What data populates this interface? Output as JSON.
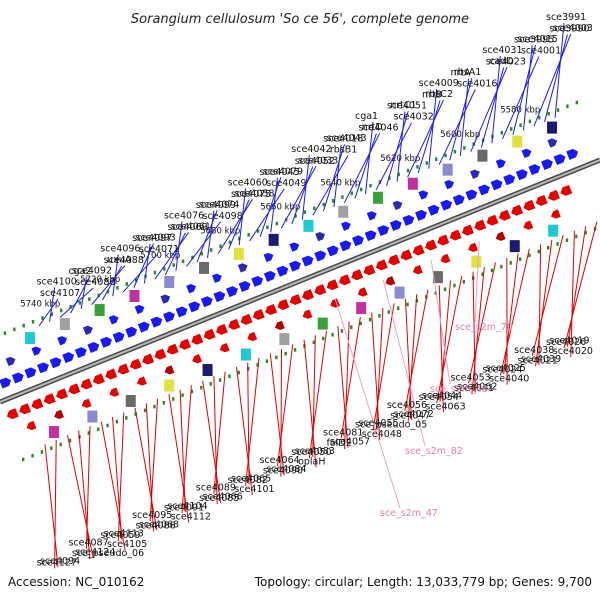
{
  "title": "Sorangium cellulosum 'So ce 56', complete genome",
  "footer": {
    "accession": "Accession: NC_010162",
    "summary": "Topology: circular; Length: 13,033,779 bp; Genes: 9,700"
  },
  "colors": {
    "forward": "#1a1aee",
    "reverse": "#e00000",
    "rna": "#f0a0c8",
    "dots": "#2a8a2a",
    "backbone": "#8a8a8a"
  },
  "kbp_markers": [
    "5580 kbp",
    "5600 kbp",
    "5620 kbp",
    "5640 kbp",
    "5660 kbp",
    "5680 kbp",
    "5700 kbp",
    "5720 kbp",
    "5740 kbp"
  ],
  "forward_genes": [
    "sce3991",
    "sce3990",
    "sce4003",
    "sce3995",
    "sce4015",
    "sce4001",
    "sce4031",
    "sce4023",
    "cadD",
    "nrtA",
    "rbsA1",
    "sce4016",
    "sce4009",
    "nrtB",
    "rbsC2",
    "sce4051",
    "nrtC1",
    "sce4032",
    "cga1",
    "sce4046",
    "nrtD",
    "sce4018",
    "sce4043",
    "rbsB1",
    "sce4042",
    "sce4052",
    "sce4033",
    "sce4045",
    "sce4079",
    "sce4049",
    "sce4060",
    "sce4075",
    "sce4058",
    "sce4099",
    "sce4074",
    "sce4098",
    "sce4076",
    "sce4069",
    "sce4061",
    "sce4097",
    "sce4093",
    "sce4071",
    "sce4096",
    "sce4088",
    "uxuA",
    "cga2",
    "sce4092",
    "sce4080",
    "sce4100",
    "sce4107"
  ],
  "reverse_genes": [
    "sce4026",
    "sce4019",
    "sce4020",
    "sce4038",
    "sce4021",
    "sce4039",
    "sce4024",
    "sce4025",
    "sce4040",
    "sce4053",
    "sce4041",
    "sce4062",
    "sce4054",
    "sce4044",
    "sce4063",
    "sce4056",
    "sce4047",
    "sce4072",
    "sce_pseudo_05",
    "sce4055",
    "sce4048",
    "sce4081",
    "folD2",
    "sce4057",
    "sce4050",
    "sce4083",
    "oplaH",
    "sce4064",
    "sce4090",
    "sce4084",
    "sce4082",
    "sce4065",
    "sce4101",
    "sce4089",
    "sce4085",
    "sce4066",
    "sce4091",
    "sce4104",
    "sce4112",
    "sce4095",
    "sce4086",
    "sce4068",
    "sce4059",
    "sce4113",
    "sce4105",
    "sce4087",
    "sce_pseudo_06",
    "sce4124",
    "sce4127",
    "sce4094"
  ],
  "rna_genes": [
    "sce_s2m_70",
    "sce_s2m_48",
    "sce_s2m_82",
    "sce_s2m_47"
  ]
}
